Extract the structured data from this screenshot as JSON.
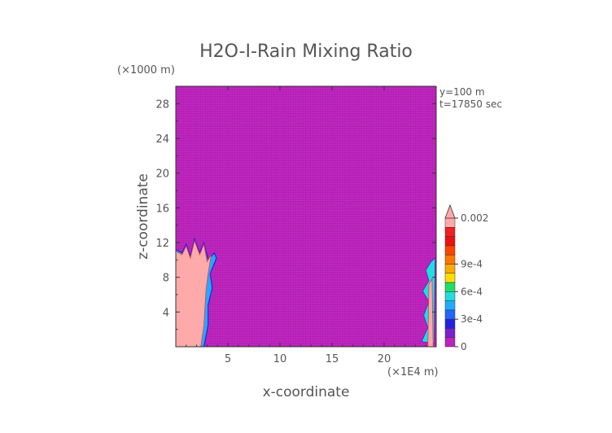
{
  "chart_data": {
    "type": "heatmap",
    "title": "H2O-I-Rain Mixing Ratio",
    "xlabel": "x-coordinate",
    "ylabel": "z-coordinate",
    "x_unit": "(×1E4 m)",
    "y_unit": "(×1000 m)",
    "xlim": [
      0,
      25
    ],
    "ylim": [
      0,
      30
    ],
    "x_ticks": [
      5,
      10,
      15,
      20
    ],
    "y_ticks": [
      4,
      8,
      12,
      16,
      20,
      24,
      28
    ],
    "annotations": [
      "y=100 m",
      "t=17850 sec"
    ],
    "background_value": 0,
    "colorbar": {
      "levels": [
        0,
        0.0001,
        0.0002,
        0.0003,
        0.0004,
        0.0005,
        0.0006,
        0.0007,
        0.0008,
        0.0009,
        0.001,
        0.0011,
        0.0012,
        0.002
      ],
      "colors": [
        "#bb22bb",
        "#7722cc",
        "#2222dd",
        "#2266ff",
        "#22aaff",
        "#22dddd",
        "#22dd66",
        "#ffdd00",
        "#ffaa00",
        "#ff7700",
        "#ff4400",
        "#ee1111",
        "#ee2222",
        "#ffaaaa"
      ],
      "tick_labels": [
        {
          "value": 0,
          "label": "0"
        },
        {
          "value": 0.0003,
          "label": "3e-4"
        },
        {
          "value": 0.0006,
          "label": "6e-4"
        },
        {
          "value": 0.0009,
          "label": "9e-4"
        },
        {
          "value": 0.002,
          "label": "0.002"
        }
      ]
    },
    "regions": [
      {
        "value": 0.002,
        "outline": [
          [
            0,
            0
          ],
          [
            0,
            11
          ],
          [
            0.6,
            10.6
          ],
          [
            1,
            11.6
          ],
          [
            1.4,
            10.2
          ],
          [
            1.8,
            12.2
          ],
          [
            2.3,
            10.6
          ],
          [
            2.7,
            11.8
          ],
          [
            3,
            9.8
          ],
          [
            3.4,
            10.6
          ],
          [
            3.1,
            8.4
          ],
          [
            2.9,
            6.5
          ],
          [
            2.8,
            4.6
          ],
          [
            2.7,
            2.5
          ],
          [
            2.4,
            0
          ]
        ],
        "fringe": [
          [
            0,
            0
          ],
          [
            0,
            11.2
          ],
          [
            0.6,
            10.8
          ],
          [
            1,
            11.8
          ],
          [
            1.4,
            10.4
          ],
          [
            1.8,
            12.4
          ],
          [
            2.3,
            10.8
          ],
          [
            2.7,
            12
          ],
          [
            3.1,
            10
          ],
          [
            3.7,
            10.8
          ],
          [
            3.9,
            10.2
          ],
          [
            3.3,
            8.4
          ],
          [
            3.5,
            6.8
          ],
          [
            3.1,
            4.8
          ],
          [
            3.1,
            2.5
          ],
          [
            2.7,
            0
          ]
        ]
      },
      {
        "value": 0.0005,
        "outline": [
          [
            23.6,
            0.6
          ],
          [
            24.2,
            2.2
          ],
          [
            23.8,
            3.6
          ],
          [
            24.3,
            5.2
          ],
          [
            23.7,
            6.4
          ],
          [
            24.3,
            7.6
          ],
          [
            24,
            8.8
          ],
          [
            24.5,
            9.8
          ],
          [
            24.9,
            10.2
          ],
          [
            24.8,
            0.4
          ]
        ]
      },
      {
        "value": 0.002,
        "outline": [
          [
            24.2,
            0
          ],
          [
            24.3,
            7.2
          ],
          [
            24.6,
            7.8
          ],
          [
            24.7,
            0
          ]
        ]
      }
    ],
    "grid": false
  }
}
